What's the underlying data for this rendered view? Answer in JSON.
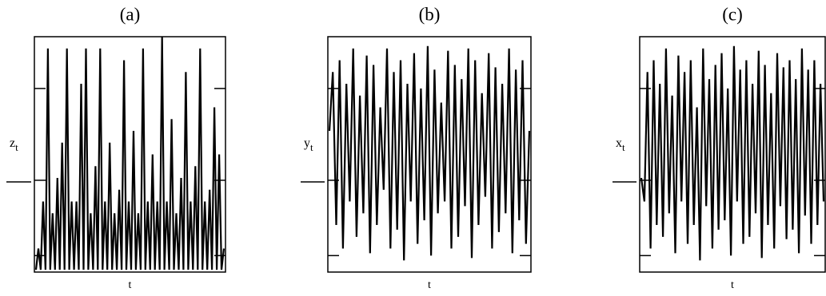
{
  "chart_data": [
    {
      "type": "line",
      "title": "(a)",
      "ylabel": "z",
      "ylabel_subscript": "t",
      "xlabel": "t",
      "ylim": [
        0,
        1
      ],
      "color": "#000000",
      "values": [
        0.01,
        0.1,
        0.01,
        0.3,
        0.01,
        0.95,
        0.01,
        0.25,
        0.01,
        0.4,
        0.01,
        0.55,
        0.01,
        0.95,
        0.01,
        0.3,
        0.01,
        0.3,
        0.01,
        0.8,
        0.01,
        0.95,
        0.01,
        0.25,
        0.01,
        0.45,
        0.01,
        0.95,
        0.01,
        0.3,
        0.01,
        0.55,
        0.01,
        0.25,
        0.01,
        0.35,
        0.01,
        0.9,
        0.01,
        0.3,
        0.01,
        0.6,
        0.01,
        0.25,
        0.01,
        0.95,
        0.01,
        0.3,
        0.01,
        0.5,
        0.01,
        0.3,
        0.01,
        1.0,
        0.01,
        0.3,
        0.01,
        0.65,
        0.01,
        0.25,
        0.01,
        0.4,
        0.01,
        0.85,
        0.01,
        0.3,
        0.01,
        0.45,
        0.01,
        0.95,
        0.01,
        0.3,
        0.01,
        0.35,
        0.01,
        0.7,
        0.01,
        0.5,
        0.01,
        0.1
      ]
    },
    {
      "type": "line",
      "title": "(b)",
      "ylabel": "y",
      "ylabel_subscript": "t",
      "xlabel": "t",
      "ylim": [
        0,
        1
      ],
      "color": "#000000",
      "values": [
        0.6,
        0.85,
        0.2,
        0.9,
        0.1,
        0.8,
        0.3,
        0.95,
        0.15,
        0.75,
        0.25,
        0.92,
        0.08,
        0.88,
        0.2,
        0.7,
        0.35,
        0.95,
        0.1,
        0.85,
        0.18,
        0.9,
        0.05,
        0.8,
        0.3,
        0.93,
        0.12,
        0.78,
        0.22,
        0.96,
        0.07,
        0.86,
        0.25,
        0.72,
        0.3,
        0.94,
        0.1,
        0.88,
        0.15,
        0.82,
        0.28,
        0.95,
        0.06,
        0.9,
        0.2,
        0.76,
        0.32,
        0.93,
        0.1,
        0.87,
        0.17,
        0.8,
        0.25,
        0.95,
        0.08,
        0.86,
        0.22,
        0.9,
        0.12,
        0.6
      ]
    },
    {
      "type": "line",
      "title": "(c)",
      "ylabel": "x",
      "ylabel_subscript": "t",
      "xlabel": "t",
      "ylim": [
        0,
        1
      ],
      "color": "#000000",
      "values": [
        0.4,
        0.3,
        0.85,
        0.1,
        0.9,
        0.2,
        0.8,
        0.15,
        0.95,
        0.25,
        0.75,
        0.08,
        0.92,
        0.3,
        0.85,
        0.12,
        0.9,
        0.2,
        0.7,
        0.05,
        0.95,
        0.28,
        0.82,
        0.1,
        0.88,
        0.18,
        0.93,
        0.22,
        0.78,
        0.07,
        0.96,
        0.3,
        0.86,
        0.12,
        0.9,
        0.15,
        0.8,
        0.25,
        0.94,
        0.06,
        0.88,
        0.2,
        0.76,
        0.1,
        0.93,
        0.28,
        0.87,
        0.14,
        0.9,
        0.18,
        0.82,
        0.08,
        0.95,
        0.24,
        0.86,
        0.12,
        0.9,
        0.2,
        0.8,
        0.3
      ]
    }
  ]
}
